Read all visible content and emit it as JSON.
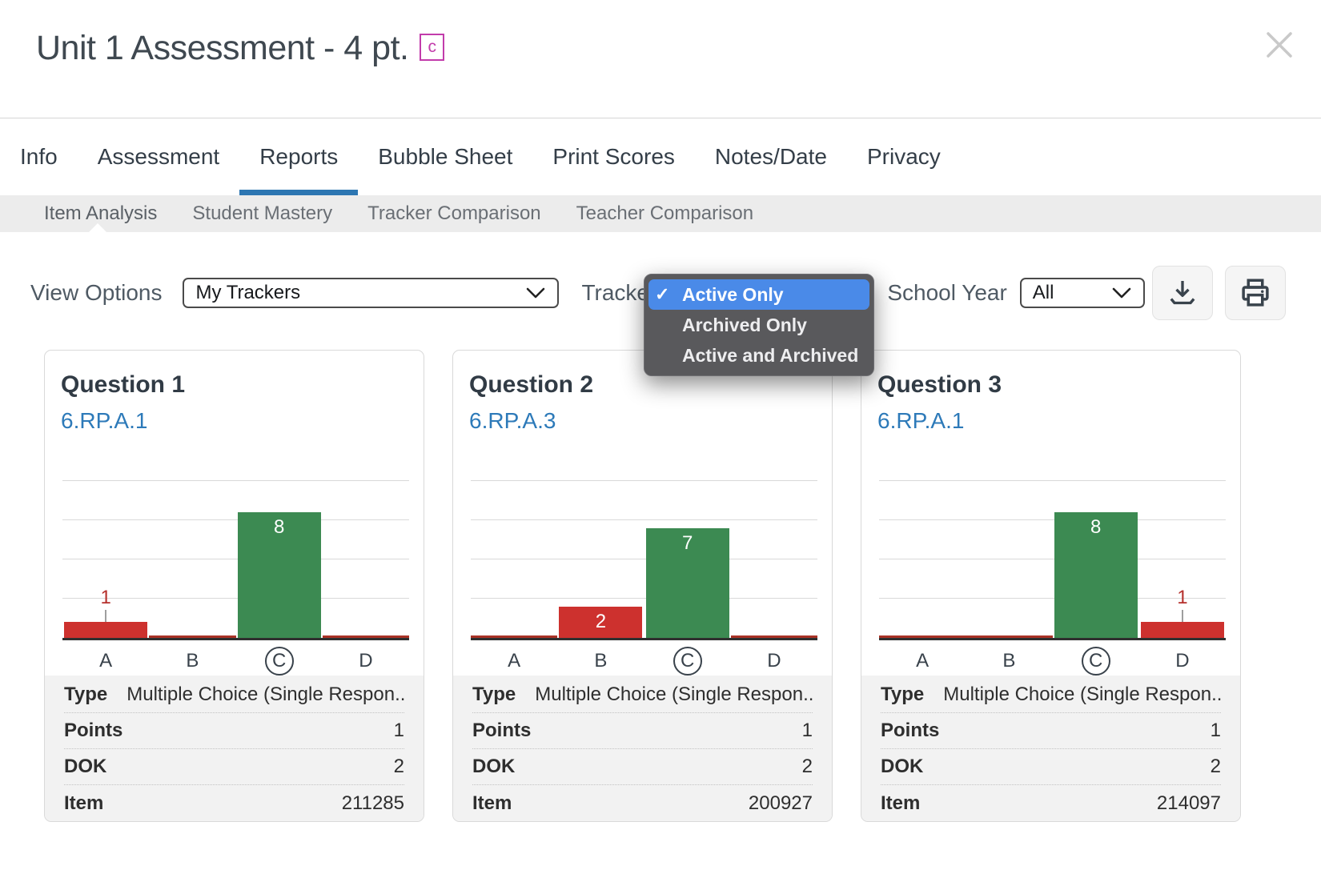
{
  "window": {
    "title": "Unit 1 Assessment - 4 pt.",
    "badge": "c"
  },
  "tabs": {
    "items": [
      "Info",
      "Assessment",
      "Reports",
      "Bubble Sheet",
      "Print Scores",
      "Notes/Date",
      "Privacy"
    ],
    "active": "Reports"
  },
  "subtabs": {
    "items": [
      "Item Analysis",
      "Student Mastery",
      "Tracker Comparison",
      "Teacher Comparison"
    ],
    "active": "Item Analysis"
  },
  "filters": {
    "view_options_label": "View Options",
    "trackers_select": {
      "value": "My Trackers"
    },
    "tracker_label": "Tracker",
    "tracker_dropdown": {
      "options": [
        "Active Only",
        "Archived Only",
        "Active and Archived"
      ],
      "selected": "Active Only",
      "check_glyph": "✓"
    },
    "school_year_label": "School Year",
    "school_year_select": {
      "value": "All"
    }
  },
  "toolbar": {
    "download_icon": "download-icon",
    "print_icon": "print-icon"
  },
  "colors": {
    "correct_bar": "#3c8a52",
    "incorrect_bar": "#cd312e",
    "zero_line": "#a93226",
    "accent_underline": "#2d76b2",
    "standard_link": "#2d7ab9",
    "dropdown_highlight": "#4a8ae8"
  },
  "chart_data": [
    {
      "type": "bar",
      "title": "Question 1",
      "standard": "6.RP.A.1",
      "categories": [
        "A",
        "B",
        "C",
        "D"
      ],
      "values": [
        1,
        0,
        8,
        0
      ],
      "correct_answer": "C",
      "ylim": [
        0,
        10
      ],
      "gridlines": [
        2.5,
        5,
        7.5,
        10
      ]
    },
    {
      "type": "bar",
      "title": "Question 2",
      "standard": "6.RP.A.3",
      "categories": [
        "A",
        "B",
        "C",
        "D"
      ],
      "values": [
        0,
        2,
        7,
        0
      ],
      "correct_answer": "C",
      "ylim": [
        0,
        10
      ],
      "gridlines": [
        2.5,
        5,
        7.5,
        10
      ]
    },
    {
      "type": "bar",
      "title": "Question 3",
      "standard": "6.RP.A.1",
      "categories": [
        "A",
        "B",
        "C",
        "D"
      ],
      "values": [
        0,
        0,
        8,
        1
      ],
      "correct_answer": "C",
      "ylim": [
        0,
        10
      ],
      "gridlines": [
        2.5,
        5,
        7.5,
        10
      ]
    }
  ],
  "questions": [
    {
      "title": "Question 1",
      "standard": "6.RP.A.1",
      "rows": [
        {
          "label": "Type",
          "value": "Multiple Choice (Single Respon...",
          "align": "left"
        },
        {
          "label": "Points",
          "value": "1",
          "align": "right"
        },
        {
          "label": "DOK",
          "value": "2",
          "align": "right"
        },
        {
          "label": "Item",
          "value": "211285",
          "align": "right"
        }
      ]
    },
    {
      "title": "Question 2",
      "standard": "6.RP.A.3",
      "rows": [
        {
          "label": "Type",
          "value": "Multiple Choice (Single Respon...",
          "align": "left"
        },
        {
          "label": "Points",
          "value": "1",
          "align": "right"
        },
        {
          "label": "DOK",
          "value": "2",
          "align": "right"
        },
        {
          "label": "Item",
          "value": "200927",
          "align": "right"
        }
      ]
    },
    {
      "title": "Question 3",
      "standard": "6.RP.A.1",
      "rows": [
        {
          "label": "Type",
          "value": "Multiple Choice (Single Respon...",
          "align": "left"
        },
        {
          "label": "Points",
          "value": "1",
          "align": "right"
        },
        {
          "label": "DOK",
          "value": "2",
          "align": "right"
        },
        {
          "label": "Item",
          "value": "214097",
          "align": "right"
        }
      ]
    }
  ]
}
